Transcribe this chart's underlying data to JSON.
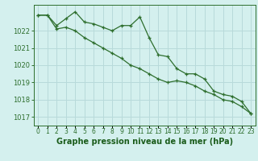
{
  "x": [
    0,
    1,
    2,
    3,
    4,
    5,
    6,
    7,
    8,
    9,
    10,
    11,
    12,
    13,
    14,
    15,
    16,
    17,
    18,
    19,
    20,
    21,
    22,
    23
  ],
  "line1": [
    1022.9,
    1022.9,
    1022.3,
    1022.7,
    1023.1,
    1022.5,
    1022.4,
    1022.2,
    1022.0,
    1022.3,
    1022.3,
    1022.8,
    1021.6,
    1020.6,
    1020.5,
    1019.8,
    1019.5,
    1019.5,
    1019.2,
    1018.5,
    1018.3,
    1018.2,
    1017.9,
    1017.2
  ],
  "line2": [
    1022.9,
    1022.9,
    1022.1,
    1022.2,
    1022.0,
    1021.6,
    1021.3,
    1021.0,
    1020.7,
    1020.4,
    1020.0,
    1019.8,
    1019.5,
    1019.2,
    1019.0,
    1019.1,
    1019.0,
    1018.8,
    1018.5,
    1018.3,
    1018.0,
    1017.9,
    1017.6,
    1017.2
  ],
  "bg_color": "#d4f0ee",
  "grid_color": "#b8dada",
  "line_color": "#2d6e2d",
  "marker": "+",
  "title": "Graphe pression niveau de la mer (hPa)",
  "ylim_min": 1016.5,
  "ylim_max": 1023.5,
  "yticks": [
    1017,
    1018,
    1019,
    1020,
    1021,
    1022
  ],
  "xlabel_color": "#1a5c1a",
  "title_fontsize": 7.0,
  "tick_fontsize": 6.0,
  "xtick_fontsize": 5.5
}
